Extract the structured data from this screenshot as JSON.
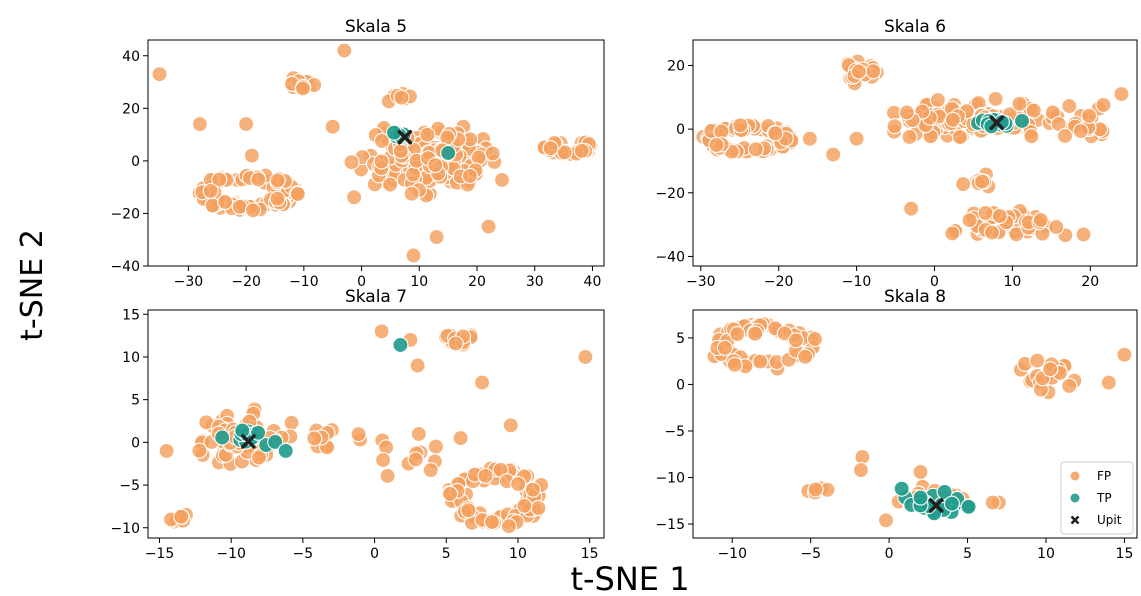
{
  "figure": {
    "xlabel": "t-SNE 1",
    "ylabel": "t-SNE 2",
    "colors": {
      "FP": "#F4A05E",
      "TP": "#229C8C",
      "Upit": "#222222"
    }
  },
  "legend": {
    "placement": "lower-right of Skala 8 panel",
    "entries": [
      {
        "label": "FP",
        "marker": "circle",
        "color": "#F4A05E"
      },
      {
        "label": "TP",
        "marker": "circle",
        "color": "#229C8C"
      },
      {
        "label": "Upit",
        "marker": "x",
        "color": "#222222"
      }
    ]
  },
  "chart_data": [
    {
      "type": "scatter",
      "title": "Skala 5",
      "xlim": [
        -37,
        42
      ],
      "ylim": [
        -40,
        46
      ],
      "xticks": [
        -30,
        -20,
        -10,
        0,
        10,
        20,
        30,
        40
      ],
      "yticks": [
        -40,
        -20,
        0,
        20,
        40
      ],
      "tick_labels": {
        "x": [
          "−30",
          "−20",
          "−10",
          "0",
          "10",
          "20",
          "30",
          "40"
        ],
        "y": [
          "−40",
          "−20",
          "0",
          "20",
          "40"
        ]
      },
      "clusters": {
        "FP": [
          {
            "cx": -20,
            "cy": -12,
            "rx": 9,
            "ry": 7,
            "n": 90,
            "shape": "ring"
          },
          {
            "cx": 12,
            "cy": 0,
            "rx": 16,
            "ry": 16,
            "n": 170
          },
          {
            "cx": 36,
            "cy": 5,
            "rx": 4.5,
            "ry": 2.5,
            "n": 35,
            "shape": "ring"
          },
          {
            "cx": -10,
            "cy": 29,
            "rx": 3,
            "ry": 3,
            "n": 14
          },
          {
            "cx": 6,
            "cy": 24,
            "rx": 3,
            "ry": 2,
            "n": 8
          }
        ],
        "TP": [
          {
            "cx": 7,
            "cy": 10,
            "rx": 2,
            "ry": 1.5,
            "n": 7
          }
        ]
      },
      "extra_points": {
        "FP": [
          [
            -35,
            33
          ],
          [
            -28,
            14
          ],
          [
            -20,
            14
          ],
          [
            -3,
            42
          ],
          [
            9,
            -36
          ],
          [
            13,
            -29
          ],
          [
            22,
            -25
          ],
          [
            -19,
            2
          ],
          [
            -5,
            13
          ],
          [
            14,
            4
          ]
        ],
        "TP": [
          [
            15,
            3
          ]
        ]
      },
      "upit": [
        [
          7.5,
          9
        ]
      ]
    },
    {
      "type": "scatter",
      "title": "Skala 6",
      "xlim": [
        -31,
        26
      ],
      "ylim": [
        -43,
        28
      ],
      "xticks": [
        -30,
        -20,
        -10,
        0,
        10,
        20
      ],
      "yticks": [
        -40,
        -20,
        0,
        20
      ],
      "tick_labels": {
        "x": [
          "−30",
          "−20",
          "−10",
          "0",
          "10",
          "20"
        ],
        "y": [
          "−40",
          "−20",
          "0",
          "20"
        ]
      },
      "clusters": {
        "FP": [
          {
            "cx": -24,
            "cy": -3,
            "rx": 6,
            "ry": 4.5,
            "n": 70,
            "shape": "ring"
          },
          {
            "cx": 4,
            "cy": 3,
            "rx": 14,
            "ry": 8,
            "n": 120
          },
          {
            "cx": -10,
            "cy": 17,
            "rx": 4,
            "ry": 5,
            "n": 22
          },
          {
            "cx": 10,
            "cy": -30,
            "rx": 10,
            "ry": 7,
            "n": 55
          },
          {
            "cx": 19,
            "cy": 2,
            "rx": 6,
            "ry": 8,
            "n": 25
          },
          {
            "cx": 6,
            "cy": -16,
            "rx": 3,
            "ry": 3,
            "n": 10
          }
        ],
        "TP": [
          {
            "cx": 8,
            "cy": 2,
            "rx": 5,
            "ry": 2,
            "n": 14
          }
        ]
      },
      "extra_points": {
        "FP": [
          [
            -3,
            -25
          ],
          [
            -16,
            -3
          ],
          [
            -13,
            -8
          ],
          [
            -10,
            -3
          ],
          [
            24,
            11
          ]
        ],
        "TP": []
      },
      "upit": [
        [
          8,
          2
        ]
      ]
    },
    {
      "type": "scatter",
      "title": "Skala 7",
      "xlim": [
        -15.8,
        16
      ],
      "ylim": [
        -11.2,
        15.5
      ],
      "xticks": [
        -15,
        -10,
        -5,
        0,
        5,
        10,
        15
      ],
      "yticks": [
        -10,
        -5,
        0,
        5,
        10,
        15
      ],
      "tick_labels": {
        "x": [
          "−15",
          "−10",
          "−5",
          "0",
          "5",
          "10",
          "15"
        ],
        "y": [
          "−10",
          "−5",
          "0",
          "5",
          "10",
          "15"
        ]
      },
      "clusters": {
        "FP": [
          {
            "cx": 8.5,
            "cy": -6.5,
            "rx": 3.5,
            "ry": 3.5,
            "n": 85,
            "shape": "ring"
          },
          {
            "cx": -9,
            "cy": 0,
            "rx": 4.5,
            "ry": 4.5,
            "n": 65
          },
          {
            "cx": 6,
            "cy": 12,
            "rx": 1.5,
            "ry": 1.5,
            "n": 14
          },
          {
            "cx": -13.5,
            "cy": -9,
            "rx": 1.2,
            "ry": 1.2,
            "n": 8
          },
          {
            "cx": 1.5,
            "cy": -1,
            "rx": 4,
            "ry": 4,
            "n": 14
          },
          {
            "cx": -3.5,
            "cy": 1,
            "rx": 2,
            "ry": 2,
            "n": 8
          }
        ],
        "TP": [
          {
            "cx": -9,
            "cy": 0.5,
            "rx": 2.5,
            "ry": 1.8,
            "n": 14
          }
        ]
      },
      "extra_points": {
        "FP": [
          [
            14.7,
            10
          ],
          [
            0.5,
            13
          ],
          [
            9.5,
            2
          ],
          [
            6,
            0.5
          ],
          [
            -14.5,
            -1
          ],
          [
            2.5,
            12
          ],
          [
            7.5,
            7
          ],
          [
            3,
            9
          ]
        ],
        "TP": [
          [
            1.8,
            11.4
          ],
          [
            -6.2,
            -1
          ]
        ]
      },
      "upit": [
        [
          -8.8,
          0.1
        ]
      ]
    },
    {
      "type": "scatter",
      "title": "Skala 8",
      "xlim": [
        -12.5,
        15.8
      ],
      "ylim": [
        -16.5,
        8
      ],
      "xticks": [
        -10,
        -5,
        0,
        5,
        10,
        15
      ],
      "yticks": [
        -15,
        -10,
        -5,
        0,
        5
      ],
      "tick_labels": {
        "x": [
          "−10",
          "−5",
          "0",
          "5",
          "10",
          "15"
        ],
        "y": [
          "−15",
          "−10",
          "−5",
          "0",
          "5"
        ]
      },
      "clusters": {
        "FP": [
          {
            "cx": -8,
            "cy": 4,
            "rx": 3.5,
            "ry": 2.5,
            "n": 60,
            "shape": "ring"
          },
          {
            "cx": 10,
            "cy": 1,
            "rx": 3,
            "ry": 2.5,
            "n": 22
          },
          {
            "cx": 3,
            "cy": -12.5,
            "rx": 3,
            "ry": 2,
            "n": 30
          },
          {
            "cx": -4.5,
            "cy": -11.3,
            "rx": 1,
            "ry": 0.5,
            "n": 5
          }
        ],
        "TP": [
          {
            "cx": 3,
            "cy": -13,
            "rx": 2.8,
            "ry": 1.7,
            "n": 26
          }
        ]
      },
      "extra_points": {
        "FP": [
          [
            15,
            3.2
          ],
          [
            14,
            0.2
          ],
          [
            -0.2,
            -14.6
          ],
          [
            -1.7,
            -7.8
          ],
          [
            -1.8,
            -9.2
          ],
          [
            2,
            -9.4
          ],
          [
            7,
            -12.7
          ],
          [
            6.6,
            -12.7
          ]
        ],
        "TP": [
          [
            0.8,
            -11.2
          ]
        ]
      },
      "upit": [
        [
          3,
          -13
        ]
      ]
    }
  ]
}
